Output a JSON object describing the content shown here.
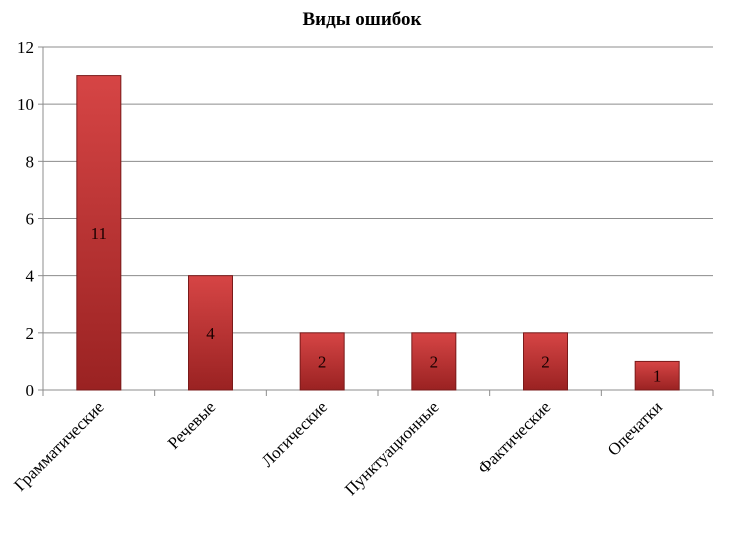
{
  "chart_data": {
    "type": "bar",
    "title": "Виды ошибок",
    "categories": [
      "Грамматические",
      "Речевые",
      "Логические",
      "Пунктуационные",
      "Фактические",
      "Опечатки"
    ],
    "values": [
      11,
      4,
      2,
      2,
      2,
      1
    ],
    "ylim": [
      0,
      12
    ],
    "yticks": [
      "0",
      "2",
      "4",
      "6",
      "8",
      "10",
      "12"
    ],
    "grid": true,
    "legend": "none",
    "colors": {
      "bar": "#c0302f",
      "bar_light": "#d64545",
      "bar_dark": "#9a2222",
      "grid": "#8c8c8c"
    }
  }
}
